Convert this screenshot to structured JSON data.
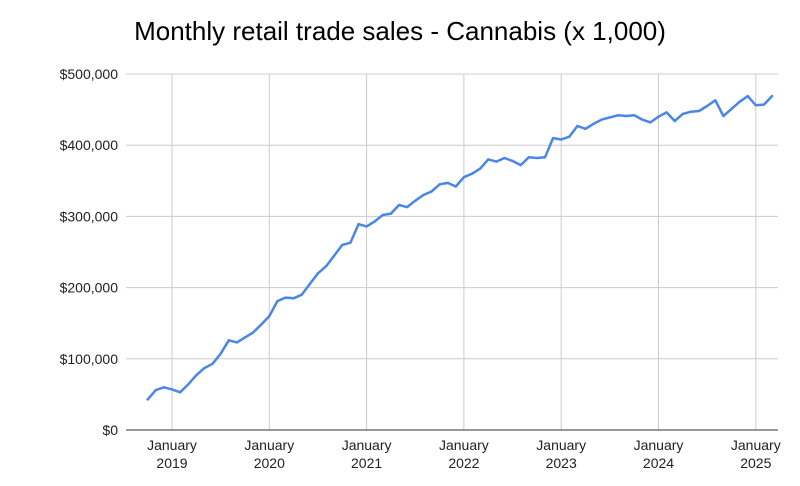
{
  "chart_data": {
    "type": "line",
    "title": "Monthly retail trade sales - Cannabis (x 1,000)",
    "xlabel": "",
    "ylabel": "",
    "ylim": [
      0,
      500000
    ],
    "grid": true,
    "legend": "none",
    "line_color": "#4a86e8",
    "y_ticks": [
      {
        "value": 0,
        "label": "$0"
      },
      {
        "value": 100000,
        "label": "$100,000"
      },
      {
        "value": 200000,
        "label": "$200,000"
      },
      {
        "value": 300000,
        "label": "$300,000"
      },
      {
        "value": 400000,
        "label": "$400,000"
      },
      {
        "value": 500000,
        "label": "$500,000"
      }
    ],
    "x_ticks": [
      {
        "date": "2019-01",
        "month": "January",
        "year": "2019"
      },
      {
        "date": "2020-01",
        "month": "January",
        "year": "2020"
      },
      {
        "date": "2021-01",
        "month": "January",
        "year": "2021"
      },
      {
        "date": "2022-01",
        "month": "January",
        "year": "2022"
      },
      {
        "date": "2023-01",
        "month": "January",
        "year": "2023"
      },
      {
        "date": "2024-01",
        "month": "January",
        "year": "2024"
      },
      {
        "date": "2025-01",
        "month": "January",
        "year": "2025"
      }
    ],
    "series": [
      {
        "x": [
          "2018-10",
          "2018-11",
          "2018-12",
          "2019-01",
          "2019-02",
          "2019-03",
          "2019-04",
          "2019-05",
          "2019-06",
          "2019-07",
          "2019-08",
          "2019-09",
          "2019-10",
          "2019-11",
          "2019-12",
          "2020-01",
          "2020-02",
          "2020-03",
          "2020-04",
          "2020-05",
          "2020-06",
          "2020-07",
          "2020-08",
          "2020-09",
          "2020-10",
          "2020-11",
          "2020-12",
          "2021-01",
          "2021-02",
          "2021-03",
          "2021-04",
          "2021-05",
          "2021-06",
          "2021-07",
          "2021-08",
          "2021-09",
          "2021-10",
          "2021-11",
          "2021-12",
          "2022-01",
          "2022-02",
          "2022-03",
          "2022-04",
          "2022-05",
          "2022-06",
          "2022-07",
          "2022-08",
          "2022-09",
          "2022-10",
          "2022-11",
          "2022-12",
          "2023-01",
          "2023-02",
          "2023-03",
          "2023-04",
          "2023-05",
          "2023-06",
          "2023-07",
          "2023-08",
          "2023-09",
          "2023-10",
          "2023-11",
          "2023-12",
          "2024-01",
          "2024-02",
          "2024-03",
          "2024-04",
          "2024-05",
          "2024-06",
          "2024-07",
          "2024-08",
          "2024-09",
          "2024-10",
          "2024-11",
          "2024-12",
          "2025-01",
          "2025-02",
          "2025-03"
        ],
        "values": [
          43000,
          56000,
          60000,
          57000,
          53000,
          64000,
          77000,
          87000,
          93000,
          107000,
          126000,
          123000,
          130000,
          137000,
          148000,
          160000,
          181000,
          186000,
          185000,
          190000,
          205000,
          220000,
          230000,
          245000,
          260000,
          263000,
          289000,
          286000,
          293000,
          302000,
          304000,
          316000,
          313000,
          322000,
          330000,
          335000,
          345000,
          347000,
          342000,
          355000,
          360000,
          367000,
          380000,
          377000,
          382000,
          378000,
          372000,
          383000,
          382000,
          383000,
          410000,
          408000,
          412000,
          427000,
          423000,
          430000,
          436000,
          439000,
          442000,
          441000,
          442000,
          436000,
          432000,
          440000,
          446000,
          434000,
          444000,
          447000,
          448000,
          455000,
          463000,
          441000,
          451000,
          461000,
          469000,
          456000,
          457000,
          469000
        ]
      }
    ]
  }
}
